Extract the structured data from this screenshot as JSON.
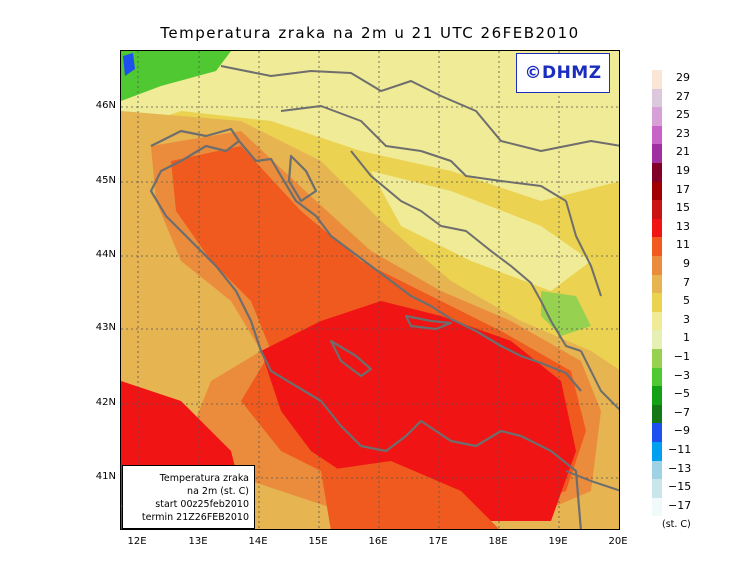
{
  "title": "Temperatura zraka na 2m u 21 UTC 26FEB2010",
  "copyright": "©DHMZ",
  "latitude_labels": [
    "46N",
    "45N",
    "44N",
    "43N",
    "42N",
    "41N"
  ],
  "longitude_labels": [
    "12E",
    "13E",
    "14E",
    "15E",
    "16E",
    "17E",
    "18E",
    "19E",
    "20E"
  ],
  "info_box": {
    "line1": "Temperatura zraka",
    "line2": "na 2m (st. C)",
    "line3": "start 00z25feb2010",
    "line4": "termin 21Z26FEB2010"
  },
  "legend": {
    "unit": "(st. C)",
    "labels": [
      "29",
      "27",
      "25",
      "23",
      "21",
      "19",
      "17",
      "15",
      "13",
      "11",
      "9",
      "7",
      "5",
      "3",
      "1",
      "−1",
      "−3",
      "−5",
      "−7",
      "−9",
      "−11",
      "−13",
      "−15",
      "−17"
    ],
    "colors": [
      "#fae6d7",
      "#dcc8dc",
      "#d7a0d7",
      "#c864c8",
      "#a030a0",
      "#820028",
      "#a00000",
      "#c81414",
      "#f01414",
      "#f05a1e",
      "#eb8c3c",
      "#e6b450",
      "#ebd250",
      "#f0eb96",
      "#e6f0b4",
      "#96d250",
      "#50c832",
      "#14a014",
      "#147814",
      "#1e50f0",
      "#00a0f0",
      "#a0d2e6",
      "#c8e6eb",
      "#f0fafa"
    ]
  },
  "map_colors": {
    "sea_warm": "#f01414",
    "sea_mid": "#f05a1e",
    "land_mild": "#ebd250",
    "land_cool": "#f0eb96",
    "land_cold": "#96d250",
    "orange": "#eb8c3c",
    "amber": "#e6b450"
  }
}
